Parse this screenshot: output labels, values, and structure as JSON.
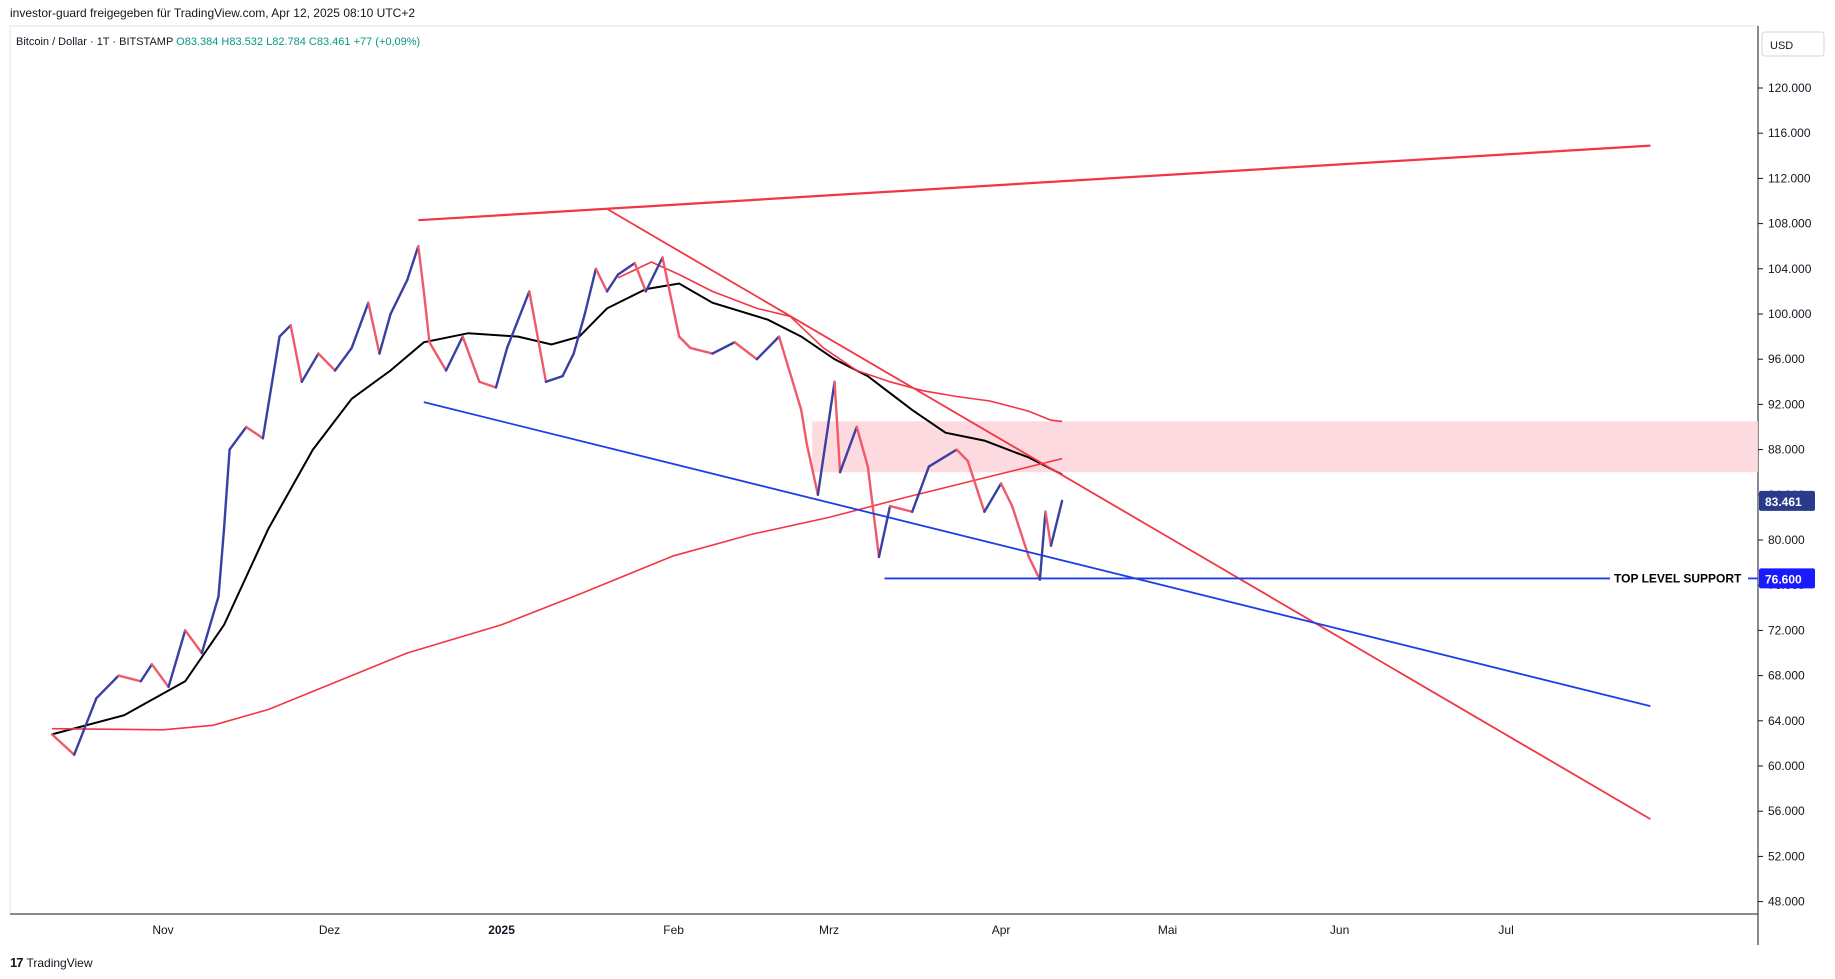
{
  "header": {
    "published_by": "investor-guard freigegeben für TradingView.com, Apr 12, 2025 08:10 UTC+2"
  },
  "symbol": {
    "name": "Bitcoin / Dollar · 1T · BITSTAMP",
    "open": "O83.384",
    "high": "H83.532",
    "low": "L82.784",
    "close": "C83.461",
    "change": "+77 (+0,09%)"
  },
  "price_axis": {
    "currency": "USD",
    "ticks": [
      "120.000",
      "116.000",
      "112.000",
      "108.000",
      "104.000",
      "100.000",
      "96.000",
      "92.000",
      "88.000",
      "84.000",
      "80.000",
      "76.000",
      "72.000",
      "68.000",
      "64.000",
      "60.000",
      "56.000",
      "52.000",
      "48.000"
    ]
  },
  "time_axis": {
    "ticks": [
      "Nov",
      "Dez",
      "2025",
      "Feb",
      "Mrz",
      "Apr",
      "Mai",
      "Jun",
      "Jul"
    ]
  },
  "labels": {
    "current_price": "83.461",
    "support_price": "76.600",
    "support_text": "TOP LEVEL SUPPORT"
  },
  "footer": {
    "brand": "TradingView"
  },
  "colors": {
    "up": "#3a3fa0",
    "down": "#ef5a6a",
    "trend_red": "#f23645",
    "trend_blue": "#1e3ee6",
    "zone": "#fcd6dc",
    "ma_black": "#000000",
    "price_label_bg": "#2a3a8c",
    "support_label_bg": "#1a1aff"
  },
  "chart_data": {
    "type": "candlestick",
    "symbol": "Bitcoin / Dollar · 1T · BITSTAMP",
    "price_unit": "USD",
    "ylim": [
      46000,
      124000
    ],
    "x_ticks": [
      {
        "label": "Nov",
        "date": "2024-11-01"
      },
      {
        "label": "Dez",
        "date": "2024-12-01"
      },
      {
        "label": "2025",
        "date": "2025-01-01"
      },
      {
        "label": "Feb",
        "date": "2025-02-01"
      },
      {
        "label": "Mrz",
        "date": "2025-03-01"
      },
      {
        "label": "Apr",
        "date": "2025-04-01"
      },
      {
        "label": "Mai",
        "date": "2025-05-01"
      },
      {
        "label": "Jun",
        "date": "2025-06-01"
      },
      {
        "label": "Jul",
        "date": "2025-07-01"
      }
    ],
    "close_path": [
      {
        "date": "2024-10-12",
        "close": 62800
      },
      {
        "date": "2024-10-16",
        "close": 61000
      },
      {
        "date": "2024-10-18",
        "close": 63500
      },
      {
        "date": "2024-10-20",
        "close": 66000
      },
      {
        "date": "2024-10-24",
        "close": 68000
      },
      {
        "date": "2024-10-28",
        "close": 67500
      },
      {
        "date": "2024-10-30",
        "close": 69000
      },
      {
        "date": "2024-11-02",
        "close": 67000
      },
      {
        "date": "2024-11-05",
        "close": 72000
      },
      {
        "date": "2024-11-08",
        "close": 70000
      },
      {
        "date": "2024-11-11",
        "close": 75000
      },
      {
        "date": "2024-11-12",
        "close": 81000
      },
      {
        "date": "2024-11-13",
        "close": 88000
      },
      {
        "date": "2024-11-16",
        "close": 90000
      },
      {
        "date": "2024-11-19",
        "close": 89000
      },
      {
        "date": "2024-11-22",
        "close": 98000
      },
      {
        "date": "2024-11-24",
        "close": 99000
      },
      {
        "date": "2024-11-26",
        "close": 94000
      },
      {
        "date": "2024-11-29",
        "close": 96500
      },
      {
        "date": "2024-12-02",
        "close": 95000
      },
      {
        "date": "2024-12-05",
        "close": 97000
      },
      {
        "date": "2024-12-08",
        "close": 101000
      },
      {
        "date": "2024-12-10",
        "close": 96500
      },
      {
        "date": "2024-12-12",
        "close": 100000
      },
      {
        "date": "2024-12-15",
        "close": 103000
      },
      {
        "date": "2024-12-17",
        "close": 106000
      },
      {
        "date": "2024-12-18",
        "close": 102000
      },
      {
        "date": "2024-12-19",
        "close": 97500
      },
      {
        "date": "2024-12-22",
        "close": 95000
      },
      {
        "date": "2024-12-25",
        "close": 98000
      },
      {
        "date": "2024-12-28",
        "close": 94000
      },
      {
        "date": "2024-12-31",
        "close": 93500
      },
      {
        "date": "2025-01-02",
        "close": 97000
      },
      {
        "date": "2025-01-06",
        "close": 102000
      },
      {
        "date": "2025-01-09",
        "close": 94000
      },
      {
        "date": "2025-01-12",
        "close": 94500
      },
      {
        "date": "2025-01-14",
        "close": 96500
      },
      {
        "date": "2025-01-16",
        "close": 100000
      },
      {
        "date": "2025-01-18",
        "close": 104000
      },
      {
        "date": "2025-01-20",
        "close": 102000
      },
      {
        "date": "2025-01-22",
        "close": 103500
      },
      {
        "date": "2025-01-25",
        "close": 104500
      },
      {
        "date": "2025-01-27",
        "close": 102000
      },
      {
        "date": "2025-01-30",
        "close": 105000
      },
      {
        "date": "2025-02-02",
        "close": 98000
      },
      {
        "date": "2025-02-04",
        "close": 97000
      },
      {
        "date": "2025-02-08",
        "close": 96500
      },
      {
        "date": "2025-02-12",
        "close": 97500
      },
      {
        "date": "2025-02-16",
        "close": 96000
      },
      {
        "date": "2025-02-20",
        "close": 98000
      },
      {
        "date": "2025-02-24",
        "close": 91500
      },
      {
        "date": "2025-02-25",
        "close": 88500
      },
      {
        "date": "2025-02-27",
        "close": 84000
      },
      {
        "date": "2025-03-02",
        "close": 94000
      },
      {
        "date": "2025-03-03",
        "close": 86000
      },
      {
        "date": "2025-03-06",
        "close": 90000
      },
      {
        "date": "2025-03-08",
        "close": 86500
      },
      {
        "date": "2025-03-10",
        "close": 78500
      },
      {
        "date": "2025-03-12",
        "close": 83000
      },
      {
        "date": "2025-03-16",
        "close": 82500
      },
      {
        "date": "2025-03-19",
        "close": 86500
      },
      {
        "date": "2025-03-24",
        "close": 88000
      },
      {
        "date": "2025-03-26",
        "close": 87000
      },
      {
        "date": "2025-03-29",
        "close": 82500
      },
      {
        "date": "2025-04-01",
        "close": 85000
      },
      {
        "date": "2025-04-03",
        "close": 83000
      },
      {
        "date": "2025-04-06",
        "close": 78500
      },
      {
        "date": "2025-04-08",
        "close": 76500
      },
      {
        "date": "2025-04-09",
        "close": 82500
      },
      {
        "date": "2025-04-10",
        "close": 79500
      },
      {
        "date": "2025-04-12",
        "close": 83461
      }
    ],
    "current_price": 83461,
    "support_level": {
      "price": 76600,
      "label": "TOP LEVEL SUPPORT",
      "start": "2025-03-11",
      "end": "2025-07-22"
    },
    "resistance_zone": {
      "from": 86000,
      "to": 90500,
      "start": "2025-02-26"
    },
    "trendlines": [
      {
        "color": "red",
        "from": {
          "date": "2024-12-17",
          "price": 108300
        },
        "to": {
          "date": "2025-07-27",
          "price": 114900
        }
      },
      {
        "color": "red",
        "from": {
          "date": "2025-01-20",
          "price": 109300
        },
        "to": {
          "date": "2025-07-27",
          "price": 55300
        }
      },
      {
        "color": "blue",
        "from": {
          "date": "2024-12-18",
          "price": 92200
        },
        "to": {
          "date": "2025-07-27",
          "price": 65300
        }
      }
    ],
    "moving_averages": [
      {
        "color": "black",
        "points": [
          {
            "date": "2024-10-12",
            "value": 62800
          },
          {
            "date": "2024-10-25",
            "value": 64500
          },
          {
            "date": "2024-11-05",
            "value": 67500
          },
          {
            "date": "2024-11-12",
            "value": 72500
          },
          {
            "date": "2024-11-20",
            "value": 81000
          },
          {
            "date": "2024-11-28",
            "value": 88000
          },
          {
            "date": "2024-12-05",
            "value": 92500
          },
          {
            "date": "2024-12-12",
            "value": 95000
          },
          {
            "date": "2024-12-18",
            "value": 97500
          },
          {
            "date": "2024-12-26",
            "value": 98300
          },
          {
            "date": "2025-01-04",
            "value": 98000
          },
          {
            "date": "2025-01-10",
            "value": 97300
          },
          {
            "date": "2025-01-15",
            "value": 98000
          },
          {
            "date": "2025-01-20",
            "value": 100500
          },
          {
            "date": "2025-01-27",
            "value": 102200
          },
          {
            "date": "2025-02-02",
            "value": 102700
          },
          {
            "date": "2025-02-08",
            "value": 101000
          },
          {
            "date": "2025-02-18",
            "value": 99500
          },
          {
            "date": "2025-02-24",
            "value": 98000
          },
          {
            "date": "2025-03-02",
            "value": 96000
          },
          {
            "date": "2025-03-08",
            "value": 94500
          },
          {
            "date": "2025-03-16",
            "value": 91500
          },
          {
            "date": "2025-03-22",
            "value": 89500
          },
          {
            "date": "2025-03-29",
            "value": 88800
          },
          {
            "date": "2025-04-06",
            "value": 87300
          },
          {
            "date": "2025-04-12",
            "value": 85800
          }
        ]
      },
      {
        "color": "red",
        "points": [
          {
            "date": "2024-10-12",
            "value": 63300
          },
          {
            "date": "2024-11-01",
            "value": 63200
          },
          {
            "date": "2024-11-10",
            "value": 63600
          },
          {
            "date": "2024-11-20",
            "value": 65000
          },
          {
            "date": "2024-12-01",
            "value": 67200
          },
          {
            "date": "2024-12-15",
            "value": 70000
          },
          {
            "date": "2025-01-01",
            "value": 72500
          },
          {
            "date": "2025-01-15",
            "value": 75200
          },
          {
            "date": "2025-02-01",
            "value": 78600
          },
          {
            "date": "2025-02-15",
            "value": 80500
          },
          {
            "date": "2025-03-01",
            "value": 82000
          },
          {
            "date": "2025-03-15",
            "value": 83800
          },
          {
            "date": "2025-03-29",
            "value": 85500
          },
          {
            "date": "2025-04-12",
            "value": 87200
          }
        ]
      },
      {
        "color": "red",
        "points": [
          {
            "date": "2025-01-22",
            "value": 103200
          },
          {
            "date": "2025-01-28",
            "value": 104600
          },
          {
            "date": "2025-02-02",
            "value": 103500
          },
          {
            "date": "2025-02-08",
            "value": 102000
          },
          {
            "date": "2025-02-16",
            "value": 100500
          },
          {
            "date": "2025-02-22",
            "value": 99800
          },
          {
            "date": "2025-02-28",
            "value": 97000
          },
          {
            "date": "2025-03-06",
            "value": 95000
          },
          {
            "date": "2025-03-12",
            "value": 94000
          },
          {
            "date": "2025-03-18",
            "value": 93200
          },
          {
            "date": "2025-03-24",
            "value": 92700
          },
          {
            "date": "2025-03-30",
            "value": 92300
          },
          {
            "date": "2025-04-06",
            "value": 91400
          },
          {
            "date": "2025-04-10",
            "value": 90600
          },
          {
            "date": "2025-04-12",
            "value": 90500
          }
        ]
      }
    ]
  }
}
